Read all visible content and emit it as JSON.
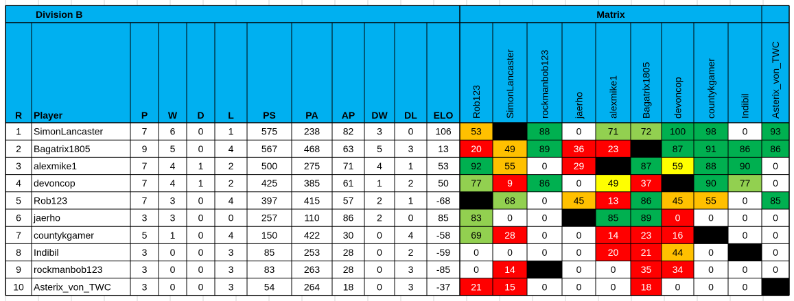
{
  "sheet": {
    "division_title": "Division B",
    "matrix_title": "Matrix",
    "columns": [
      "R",
      "Player",
      "P",
      "W",
      "D",
      "L",
      "PS",
      "PA",
      "AP",
      "DW",
      "DL",
      "ELO"
    ],
    "matrix_opponents": [
      "Rob123",
      "SimonLancaster",
      "rockmanbob123",
      "jaerho",
      "alexmike1",
      "Bagatrix1805",
      "devoncop",
      "countykgamer",
      "Indibil",
      "Asterix_von_TWC"
    ],
    "rows": [
      {
        "r": "1",
        "player": "SimonLancaster",
        "p": "7",
        "w": "6",
        "d": "0",
        "l": "1",
        "ps": "575",
        "pa": "238",
        "ap": "82",
        "dw": "3",
        "dl": "0",
        "elo": "106",
        "matrix": [
          "53",
          "",
          "88",
          "0",
          "71",
          "72",
          "100",
          "98",
          "0",
          "93"
        ]
      },
      {
        "r": "2",
        "player": "Bagatrix1805",
        "p": "9",
        "w": "5",
        "d": "0",
        "l": "4",
        "ps": "567",
        "pa": "468",
        "ap": "63",
        "dw": "5",
        "dl": "3",
        "elo": "13",
        "matrix": [
          "20",
          "49",
          "89",
          "36",
          "23",
          "",
          "87",
          "91",
          "86",
          "86"
        ]
      },
      {
        "r": "3",
        "player": "alexmike1",
        "p": "7",
        "w": "4",
        "d": "1",
        "l": "2",
        "ps": "500",
        "pa": "275",
        "ap": "71",
        "dw": "4",
        "dl": "1",
        "elo": "53",
        "matrix": [
          "92",
          "55",
          "0",
          "29",
          "",
          "87",
          "59",
          "88",
          "90",
          "0"
        ]
      },
      {
        "r": "4",
        "player": "devoncop",
        "p": "7",
        "w": "4",
        "d": "1",
        "l": "2",
        "ps": "425",
        "pa": "385",
        "ap": "61",
        "dw": "1",
        "dl": "2",
        "elo": "50",
        "matrix": [
          "77",
          "9",
          "86",
          "0",
          "49",
          "37",
          "",
          "90",
          "77",
          "0"
        ]
      },
      {
        "r": "5",
        "player": "Rob123",
        "p": "7",
        "w": "3",
        "d": "0",
        "l": "4",
        "ps": "397",
        "pa": "415",
        "ap": "57",
        "dw": "2",
        "dl": "1",
        "elo": "-68",
        "matrix": [
          "",
          "68",
          "0",
          "45",
          "13",
          "86",
          "45",
          "55",
          "0",
          "85"
        ]
      },
      {
        "r": "6",
        "player": "jaerho",
        "p": "3",
        "w": "3",
        "d": "0",
        "l": "0",
        "ps": "257",
        "pa": "110",
        "ap": "86",
        "dw": "2",
        "dl": "0",
        "elo": "85",
        "matrix": [
          "83",
          "0",
          "0",
          "",
          "85",
          "89",
          "0",
          "0",
          "0",
          "0"
        ]
      },
      {
        "r": "7",
        "player": "countykgamer",
        "p": "5",
        "w": "1",
        "d": "0",
        "l": "4",
        "ps": "150",
        "pa": "422",
        "ap": "30",
        "dw": "0",
        "dl": "4",
        "elo": "-58",
        "matrix": [
          "69",
          "28",
          "0",
          "0",
          "14",
          "23",
          "16",
          "",
          "0",
          "0"
        ]
      },
      {
        "r": "8",
        "player": "Indibil",
        "p": "3",
        "w": "0",
        "d": "0",
        "l": "3",
        "ps": "85",
        "pa": "253",
        "ap": "28",
        "dw": "0",
        "dl": "2",
        "elo": "-59",
        "matrix": [
          "0",
          "0",
          "0",
          "0",
          "20",
          "21",
          "44",
          "0",
          "",
          "0"
        ]
      },
      {
        "r": "9",
        "player": "rockmanbob123",
        "p": "3",
        "w": "0",
        "d": "0",
        "l": "3",
        "ps": "83",
        "pa": "263",
        "ap": "28",
        "dw": "0",
        "dl": "3",
        "elo": "-85",
        "matrix": [
          "0",
          "14",
          "",
          "0",
          "0",
          "35",
          "34",
          "0",
          "0",
          "0"
        ]
      },
      {
        "r": "10",
        "player": "Asterix_von_TWC",
        "p": "3",
        "w": "0",
        "d": "0",
        "l": "3",
        "ps": "54",
        "pa": "264",
        "ap": "18",
        "dw": "0",
        "dl": "3",
        "elo": "-37",
        "matrix": [
          "21",
          "15",
          "0",
          "0",
          "0",
          "18",
          "0",
          "0",
          "0",
          ""
        ]
      }
    ],
    "matrix_fill_codes": [
      [
        "orange",
        "black",
        "green",
        "white",
        "lgreen",
        "lgreen",
        "green",
        "green",
        "white",
        "green"
      ],
      [
        "red",
        "orange",
        "green",
        "red",
        "red",
        "black",
        "green",
        "green",
        "green",
        "green"
      ],
      [
        "green",
        "orange",
        "white",
        "red",
        "black",
        "green",
        "yellow",
        "green",
        "green",
        "white"
      ],
      [
        "lgreen",
        "red",
        "green",
        "white",
        "yellow",
        "red",
        "black",
        "green",
        "lgreen",
        "white"
      ],
      [
        "black",
        "lgreen",
        "white",
        "orange",
        "red",
        "green",
        "orange",
        "orange",
        "white",
        "green"
      ],
      [
        "lgreen",
        "white",
        "white",
        "black",
        "green",
        "green",
        "red",
        "white",
        "white",
        "white"
      ],
      [
        "lgreen",
        "red",
        "white",
        "white",
        "red",
        "red",
        "red",
        "black",
        "white",
        "white"
      ],
      [
        "white",
        "white",
        "white",
        "white",
        "red",
        "red",
        "orange",
        "white",
        "black",
        "white"
      ],
      [
        "white",
        "red",
        "black",
        "white",
        "white",
        "red",
        "red",
        "white",
        "white",
        "white"
      ],
      [
        "red",
        "red",
        "white",
        "white",
        "white",
        "red",
        "white",
        "white",
        "white",
        "black"
      ]
    ],
    "colors": {
      "header_blue": "#00b0f0",
      "red": "#ff0000",
      "orange": "#ffc000",
      "yellow": "#ffff00",
      "lgreen": "#92d050",
      "green": "#00b050",
      "black": "#000000",
      "white": "#ffffff",
      "border": "#000000",
      "gridline": "#d4d4d4"
    }
  }
}
